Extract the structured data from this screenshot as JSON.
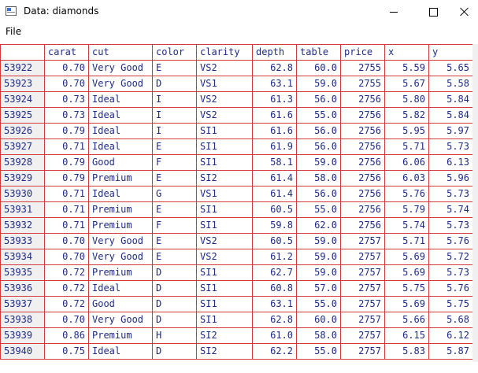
{
  "window": {
    "title": "Data: diamonds"
  },
  "menu": {
    "file_label": "File"
  },
  "table": {
    "columns": [
      "carat",
      "cut",
      "color",
      "clarity",
      "depth",
      "table",
      "price",
      "x",
      "y"
    ],
    "rows": [
      {
        "id": "53922",
        "cells": [
          "0.70",
          "Very Good",
          "E",
          "VS2",
          "62.8",
          "60.0",
          "2755",
          "5.59",
          "5.65"
        ]
      },
      {
        "id": "53923",
        "cells": [
          "0.70",
          "Very Good",
          "D",
          "VS1",
          "63.1",
          "59.0",
          "2755",
          "5.67",
          "5.58"
        ]
      },
      {
        "id": "53924",
        "cells": [
          "0.73",
          "Ideal",
          "I",
          "VS2",
          "61.3",
          "56.0",
          "2756",
          "5.80",
          "5.84"
        ]
      },
      {
        "id": "53925",
        "cells": [
          "0.73",
          "Ideal",
          "I",
          "VS2",
          "61.6",
          "55.0",
          "2756",
          "5.82",
          "5.84"
        ]
      },
      {
        "id": "53926",
        "cells": [
          "0.79",
          "Ideal",
          "I",
          "SI1",
          "61.6",
          "56.0",
          "2756",
          "5.95",
          "5.97"
        ]
      },
      {
        "id": "53927",
        "cells": [
          "0.71",
          "Ideal",
          "E",
          "SI1",
          "61.9",
          "56.0",
          "2756",
          "5.71",
          "5.73"
        ]
      },
      {
        "id": "53928",
        "cells": [
          "0.79",
          "Good",
          "F",
          "SI1",
          "58.1",
          "59.0",
          "2756",
          "6.06",
          "6.13"
        ]
      },
      {
        "id": "53929",
        "cells": [
          "0.79",
          "Premium",
          "E",
          "SI2",
          "61.4",
          "58.0",
          "2756",
          "6.03",
          "5.96"
        ]
      },
      {
        "id": "53930",
        "cells": [
          "0.71",
          "Ideal",
          "G",
          "VS1",
          "61.4",
          "56.0",
          "2756",
          "5.76",
          "5.73"
        ]
      },
      {
        "id": "53931",
        "cells": [
          "0.71",
          "Premium",
          "E",
          "SI1",
          "60.5",
          "55.0",
          "2756",
          "5.79",
          "5.74"
        ]
      },
      {
        "id": "53932",
        "cells": [
          "0.71",
          "Premium",
          "F",
          "SI1",
          "59.8",
          "62.0",
          "2756",
          "5.74",
          "5.73"
        ]
      },
      {
        "id": "53933",
        "cells": [
          "0.70",
          "Very Good",
          "E",
          "VS2",
          "60.5",
          "59.0",
          "2757",
          "5.71",
          "5.76"
        ]
      },
      {
        "id": "53934",
        "cells": [
          "0.70",
          "Very Good",
          "E",
          "VS2",
          "61.2",
          "59.0",
          "2757",
          "5.69",
          "5.72"
        ]
      },
      {
        "id": "53935",
        "cells": [
          "0.72",
          "Premium",
          "D",
          "SI1",
          "62.7",
          "59.0",
          "2757",
          "5.69",
          "5.73"
        ]
      },
      {
        "id": "53936",
        "cells": [
          "0.72",
          "Ideal",
          "D",
          "SI1",
          "60.8",
          "57.0",
          "2757",
          "5.75",
          "5.76"
        ]
      },
      {
        "id": "53937",
        "cells": [
          "0.72",
          "Good",
          "D",
          "SI1",
          "63.1",
          "55.0",
          "2757",
          "5.69",
          "5.75"
        ]
      },
      {
        "id": "53938",
        "cells": [
          "0.70",
          "Very Good",
          "D",
          "SI1",
          "62.8",
          "60.0",
          "2757",
          "5.66",
          "5.68"
        ]
      },
      {
        "id": "53939",
        "cells": [
          "0.86",
          "Premium",
          "H",
          "SI2",
          "61.0",
          "58.0",
          "2757",
          "6.15",
          "6.12"
        ]
      },
      {
        "id": "53940",
        "cells": [
          "0.75",
          "Ideal",
          "D",
          "SI2",
          "62.2",
          "55.0",
          "2757",
          "5.83",
          "5.87"
        ]
      }
    ]
  },
  "colors": {
    "grid_line": "#d43a3a",
    "cell_text": "#1f2a8a",
    "row_header_bg": "#f0f0f0"
  }
}
